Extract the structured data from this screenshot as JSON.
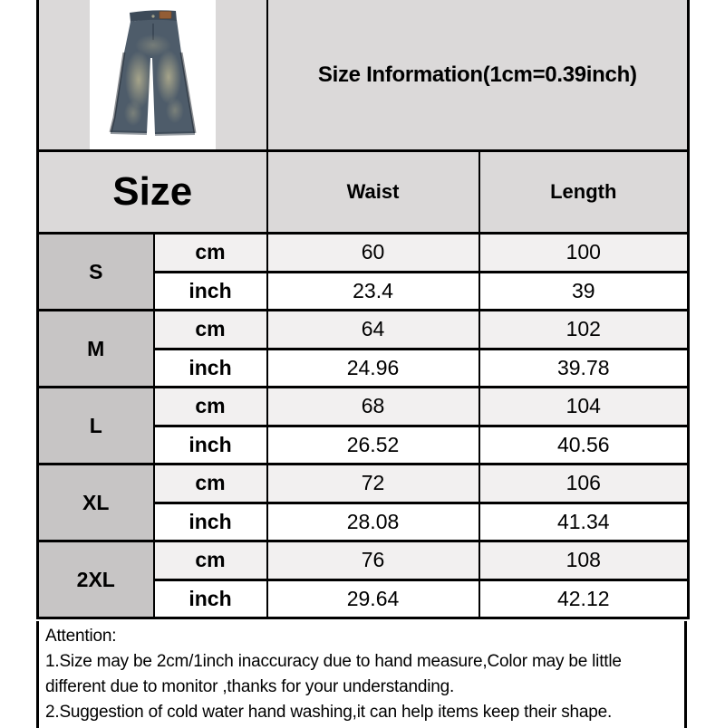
{
  "header": {
    "title": "Size Information(1cm=0.39inch)",
    "product_image_alt": "washed-blue wide-leg jeans product photo"
  },
  "colors": {
    "section_bg": "#dbd9d9",
    "size_cell_bg": "#c7c5c5",
    "cm_row_bg": "#f2f0f0",
    "inch_row_bg": "#ffffff",
    "border": "#000000",
    "text": "#000000",
    "denim_base": "#4e5c6a",
    "denim_waistband": "#3d4a58",
    "denim_fade": "#c3bc95",
    "patch_brown": "#935d36"
  },
  "table": {
    "size_header": "Size",
    "columns": [
      "Waist",
      "Length"
    ],
    "unit_labels": {
      "cm": "cm",
      "inch": "inch"
    },
    "rows": [
      {
        "size": "S",
        "cm": [
          "60",
          "100"
        ],
        "inch": [
          "23.4",
          "39"
        ]
      },
      {
        "size": "M",
        "cm": [
          "64",
          "102"
        ],
        "inch": [
          "24.96",
          "39.78"
        ]
      },
      {
        "size": "L",
        "cm": [
          "68",
          "104"
        ],
        "inch": [
          "26.52",
          "40.56"
        ]
      },
      {
        "size": "XL",
        "cm": [
          "72",
          "106"
        ],
        "inch": [
          "28.08",
          "41.34"
        ]
      },
      {
        "size": "2XL",
        "cm": [
          "76",
          "108"
        ],
        "inch": [
          "29.64",
          "42.12"
        ]
      }
    ]
  },
  "attention": {
    "lines": [
      "Attention:",
      "1.Size may be 2cm/1inch inaccuracy due to hand measure,Color may be little",
      "different due to monitor ,thanks for your understanding.",
      "2.Suggestion of cold water hand washing,it can help items keep their shape."
    ]
  }
}
